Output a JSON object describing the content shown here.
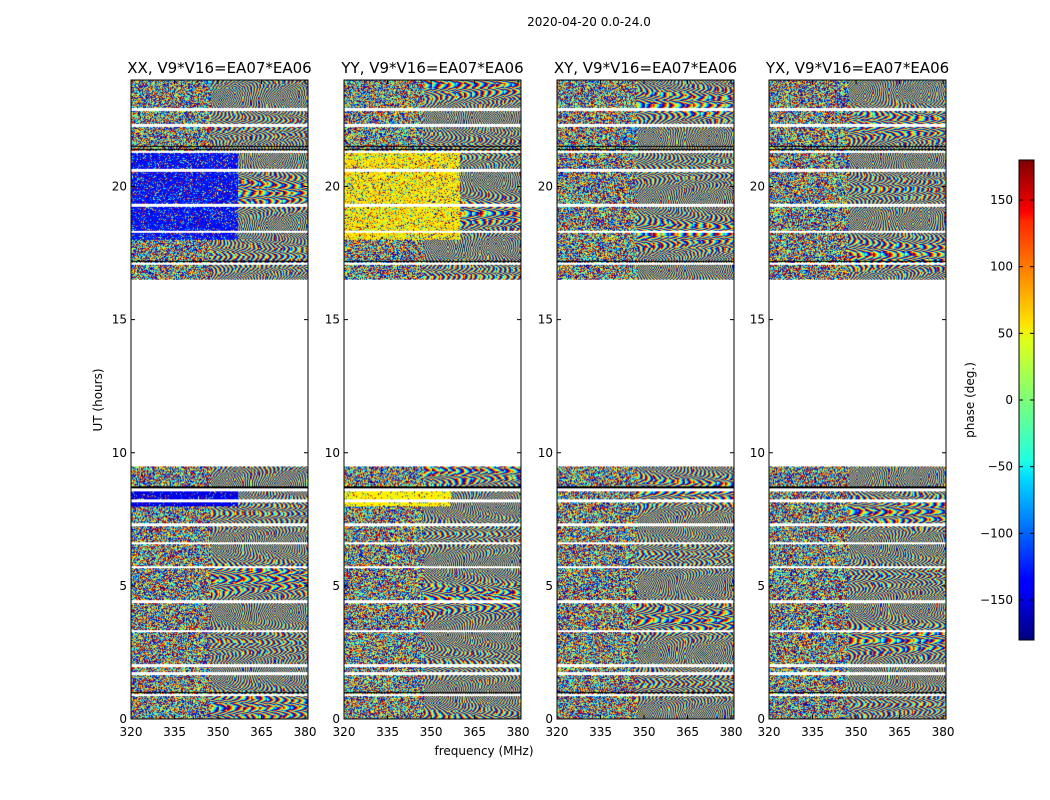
{
  "chart_data": {
    "type": "heatmap",
    "title": "2020-04-20 0.0-24.0",
    "xlabel": "frequency (MHz)",
    "ylabel": "UT (hours)",
    "xlim": [
      320,
      381
    ],
    "ylim": [
      0,
      24
    ],
    "x_ticks": [
      320,
      335,
      350,
      365,
      380
    ],
    "y_ticks": [
      0,
      5,
      10,
      15,
      20
    ],
    "panels": [
      {
        "name": "XX, V9*V16=EA07*EA06",
        "tint": "blue"
      },
      {
        "name": "YY, V9*V16=EA07*EA06",
        "tint": "yellow"
      },
      {
        "name": "XY, V9*V16=EA07*EA06",
        "tint": "none"
      },
      {
        "name": "YX, V9*V16=EA07*EA06",
        "tint": "none"
      }
    ],
    "data_ranges_ut": [
      [
        0.0,
        9.5
      ],
      [
        16.5,
        24.0
      ]
    ],
    "gap_rows_ut": [
      0.9,
      1.7,
      2.0,
      3.3,
      4.4,
      5.7,
      6.6,
      7.3,
      8.2,
      8.6,
      17.1,
      18.3,
      19.3,
      20.6,
      21.3,
      22.3,
      22.9
    ],
    "black_rows_ut": [
      1.0,
      2.05,
      8.7,
      9.5,
      17.2,
      21.4,
      21.5
    ],
    "colorbar": {
      "label": "phase (deg.)",
      "range": [
        -180,
        180
      ],
      "ticks": [
        -150,
        -100,
        -50,
        0,
        50,
        100,
        150
      ],
      "tick_labels": [
        "−150",
        "−100",
        "−50",
        "0",
        "50",
        "100",
        "150"
      ]
    }
  }
}
